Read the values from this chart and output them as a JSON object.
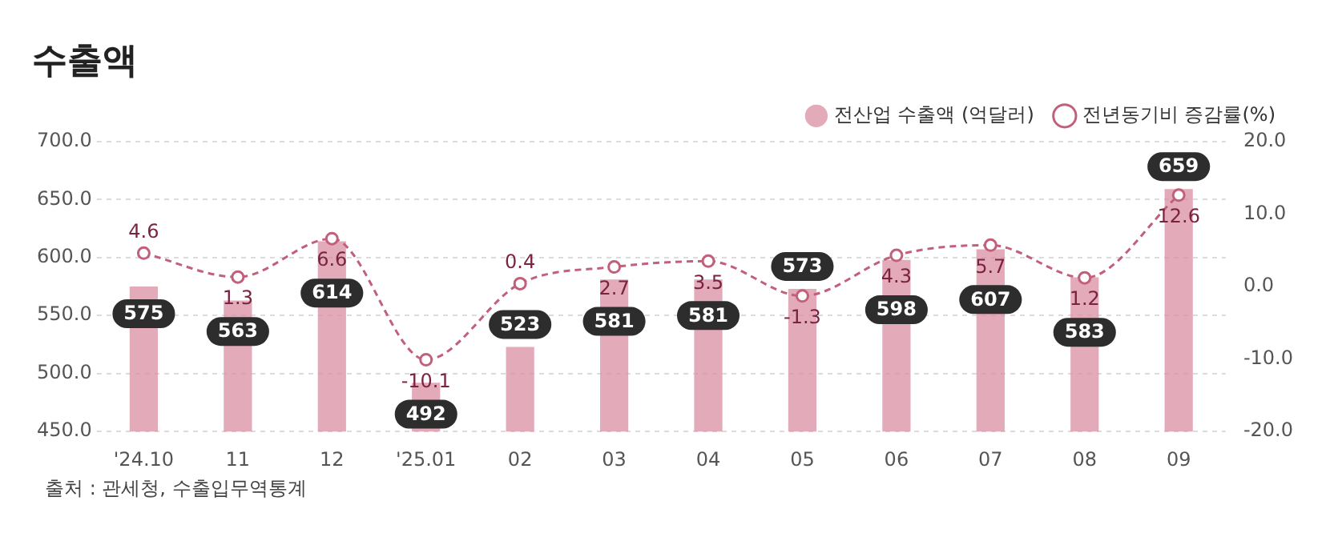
{
  "chart_data": {
    "type": "bar",
    "title": "수출액",
    "categories": [
      "'24.10",
      "11",
      "12",
      "'25.01",
      "02",
      "03",
      "04",
      "05",
      "06",
      "07",
      "08",
      "09"
    ],
    "series": [
      {
        "name": "전산업 수출액 (억달러)",
        "color": "#d98ea3",
        "values": [
          575,
          563,
          614,
          492,
          523,
          581,
          581,
          573,
          598,
          607,
          583,
          659
        ]
      },
      {
        "name": "전년동기비 증감률(%)",
        "type": "line",
        "axis": "y2",
        "color": "#c2607c",
        "values": [
          4.6,
          1.3,
          6.6,
          -10.1,
          0.4,
          2.7,
          3.5,
          -1.3,
          4.3,
          5.7,
          1.2,
          12.6
        ]
      }
    ],
    "ylim": [
      450,
      700
    ],
    "yticks": [
      {
        "value": 450,
        "label": "450.0"
      },
      {
        "value": 500,
        "label": "500.0"
      },
      {
        "value": 550,
        "label": "550.0"
      },
      {
        "value": 600,
        "label": "600.0"
      },
      {
        "value": 650,
        "label": "650.0"
      },
      {
        "value": 700,
        "label": "700.0"
      }
    ],
    "y2lim": [
      -20,
      20
    ],
    "y2ticks": [
      {
        "value": -20,
        "label": "-20.0"
      },
      {
        "value": -10,
        "label": "-10.0"
      },
      {
        "value": 0,
        "label": "0.0"
      },
      {
        "value": 10,
        "label": "10.0"
      },
      {
        "value": 20,
        "label": "20.0"
      }
    ],
    "grid": "y",
    "legend": "top right",
    "marker": "circle",
    "line_style": "dashed",
    "data_labels": true,
    "annotations": [
      "출처 : 관세청, 수출입무역통계"
    ]
  }
}
